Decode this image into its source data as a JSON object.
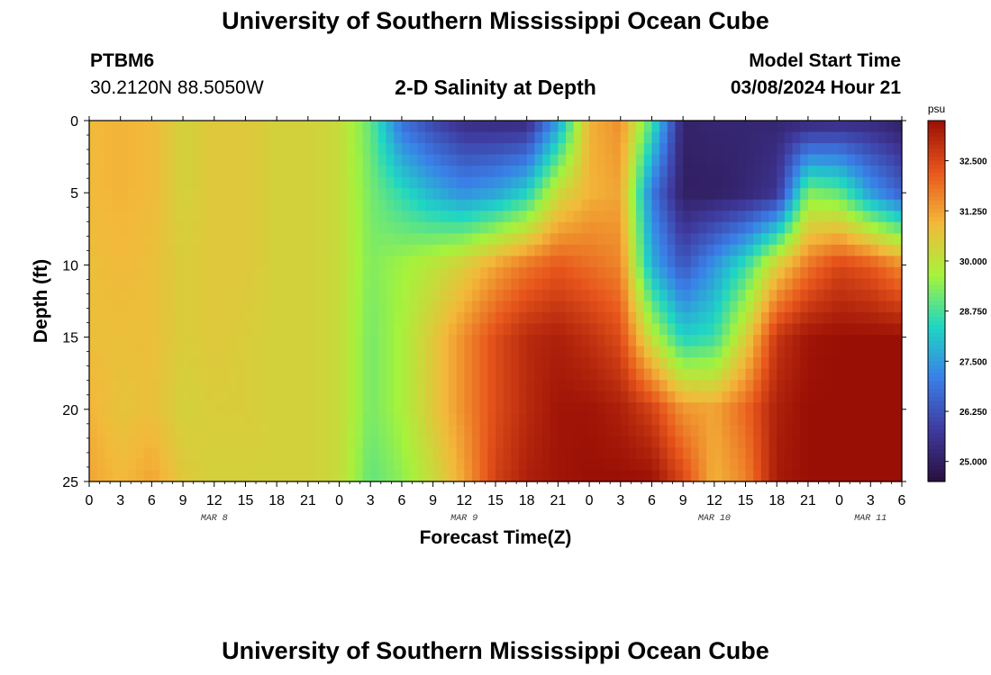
{
  "header": {
    "title_top": "University of Southern Mississippi Ocean Cube",
    "title_bottom": "University of Southern Mississippi Ocean Cube",
    "station_id": "PTBM6",
    "station_coords": "30.2120N  88.5050W",
    "model_start_label": "Model Start Time",
    "model_start_value": "03/08/2024 Hour 21"
  },
  "chart_data": {
    "type": "heatmap",
    "title": "2-D Salinity at Depth",
    "xlabel": "Forecast Time(Z)",
    "ylabel": "Depth (ft)",
    "x_unit": "hours from 03/08 00Z",
    "ylim": [
      0,
      25
    ],
    "y_ticks": [
      0,
      5,
      10,
      15,
      20,
      25
    ],
    "x_ticks": [
      {
        "h": 0,
        "label": "0"
      },
      {
        "h": 3,
        "label": "3"
      },
      {
        "h": 6,
        "label": "6"
      },
      {
        "h": 9,
        "label": "9"
      },
      {
        "h": 12,
        "label": "12"
      },
      {
        "h": 15,
        "label": "15"
      },
      {
        "h": 18,
        "label": "18"
      },
      {
        "h": 21,
        "label": "21"
      },
      {
        "h": 24,
        "label": "0"
      },
      {
        "h": 27,
        "label": "3"
      },
      {
        "h": 30,
        "label": "6"
      },
      {
        "h": 33,
        "label": "9"
      },
      {
        "h": 36,
        "label": "12"
      },
      {
        "h": 39,
        "label": "15"
      },
      {
        "h": 42,
        "label": "18"
      },
      {
        "h": 45,
        "label": "21"
      },
      {
        "h": 48,
        "label": "0"
      },
      {
        "h": 51,
        "label": "3"
      },
      {
        "h": 54,
        "label": "6"
      },
      {
        "h": 57,
        "label": "9"
      },
      {
        "h": 60,
        "label": "12"
      },
      {
        "h": 63,
        "label": "15"
      },
      {
        "h": 66,
        "label": "18"
      },
      {
        "h": 69,
        "label": "21"
      },
      {
        "h": 72,
        "label": "0"
      },
      {
        "h": 75,
        "label": "3"
      },
      {
        "h": 78,
        "label": "6"
      }
    ],
    "xlim": [
      0,
      78
    ],
    "day_labels": [
      {
        "h": 12,
        "label": "MAR 8"
      },
      {
        "h": 36,
        "label": "MAR 9"
      },
      {
        "h": 60,
        "label": "MAR 10"
      },
      {
        "h": 75,
        "label": "MAR 11"
      }
    ],
    "colorbar": {
      "unit": "psu",
      "min": 24.5,
      "max": 33.5,
      "tick_values": [
        25.0,
        26.25,
        27.5,
        28.75,
        30.0,
        31.25,
        32.5
      ],
      "tick_labels": [
        "25.000",
        "26.250",
        "27.500",
        "28.750",
        "30.000",
        "31.250",
        "32.500"
      ],
      "colors": [
        "#2a0f3e",
        "#3f3a9e",
        "#3a7fe8",
        "#1fd6c4",
        "#a5f33c",
        "#f3b93a",
        "#e8561c",
        "#9a0f05"
      ]
    },
    "grid_hours": [
      0,
      3,
      6,
      9,
      12,
      15,
      18,
      21,
      24,
      27,
      30,
      33,
      36,
      39,
      42,
      45,
      48,
      51,
      54,
      57,
      60,
      63,
      66,
      69,
      72,
      75,
      78
    ],
    "grid_depths": [
      0,
      5,
      10,
      15,
      20,
      25
    ],
    "salinity": [
      [
        30.9,
        31.0,
        30.9,
        30.4,
        30.6,
        30.6,
        30.4,
        30.4,
        30.2,
        29.0,
        26.8,
        26.0,
        25.4,
        25.3,
        25.3,
        27.5,
        31.0,
        31.5,
        28.8,
        25.1,
        25.2,
        25.2,
        25.2,
        25.2,
        25.3,
        25.3,
        25.0
      ],
      [
        30.9,
        31.0,
        30.9,
        30.4,
        30.6,
        30.6,
        30.4,
        30.4,
        30.2,
        29.2,
        28.5,
        27.8,
        27.3,
        27.6,
        28.3,
        30.2,
        31.0,
        31.2,
        27.0,
        25.0,
        25.0,
        25.2,
        25.6,
        29.3,
        29.0,
        27.5,
        26.5
      ],
      [
        30.8,
        30.9,
        30.8,
        30.5,
        30.6,
        30.6,
        30.4,
        30.4,
        30.2,
        29.3,
        29.6,
        30.0,
        30.5,
        31.2,
        31.8,
        32.2,
        31.9,
        31.6,
        27.8,
        26.3,
        27.4,
        28.6,
        30.5,
        31.8,
        32.5,
        32.2,
        31.5
      ],
      [
        30.8,
        30.8,
        30.8,
        30.5,
        30.6,
        30.5,
        30.4,
        30.4,
        30.2,
        29.2,
        29.7,
        30.6,
        31.5,
        32.4,
        33.0,
        33.2,
        32.9,
        32.4,
        30.0,
        28.3,
        28.6,
        30.4,
        32.8,
        33.4,
        33.5,
        33.5,
        33.5
      ],
      [
        31.0,
        30.7,
        30.8,
        30.4,
        30.5,
        30.5,
        30.4,
        30.4,
        30.2,
        29.2,
        29.7,
        30.6,
        31.5,
        32.4,
        33.0,
        33.4,
        33.4,
        33.2,
        32.6,
        31.4,
        31.2,
        32.0,
        33.2,
        33.5,
        33.5,
        33.5,
        33.5
      ],
      [
        31.2,
        30.9,
        31.2,
        30.6,
        30.4,
        30.4,
        30.4,
        30.4,
        30.2,
        29.0,
        29.4,
        30.2,
        31.2,
        32.6,
        33.2,
        33.4,
        33.5,
        33.5,
        33.5,
        32.5,
        31.0,
        31.6,
        33.3,
        33.5,
        33.5,
        33.5,
        33.5
      ]
    ]
  }
}
